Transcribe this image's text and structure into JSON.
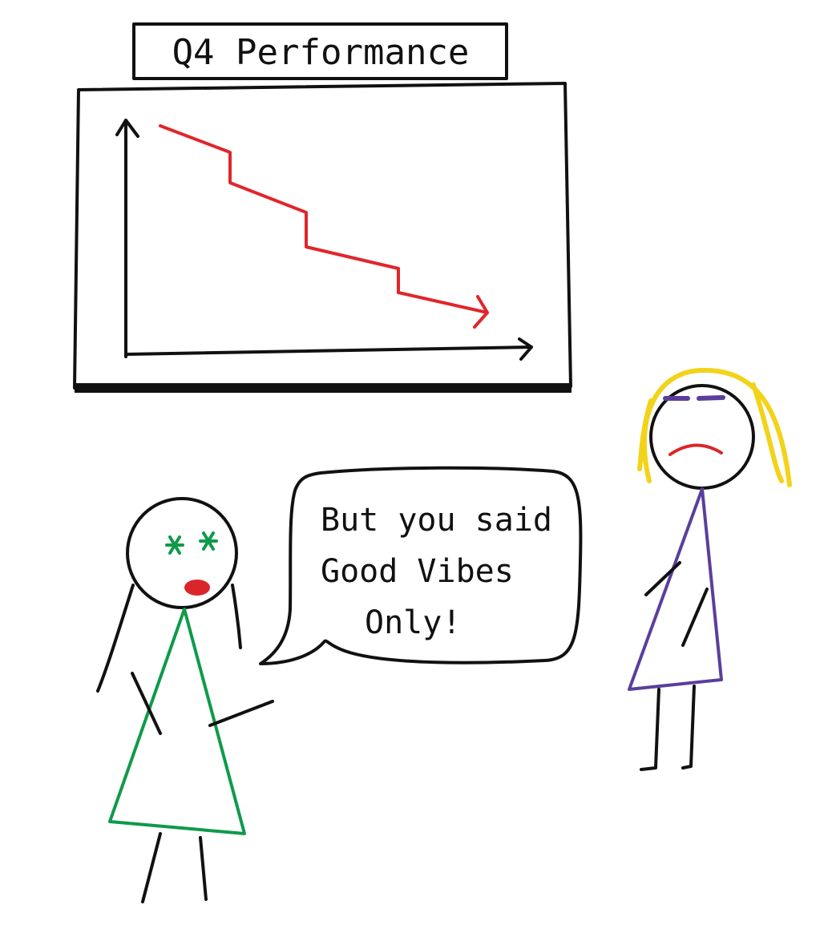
{
  "title_sign": {
    "text": "Q4 Performance"
  },
  "chart": {
    "trend": "declining",
    "line_color": "#e0262b"
  },
  "speech_bubble": {
    "lines": [
      "But you said",
      "Good Vibes",
      "Only!"
    ]
  },
  "characters": {
    "speaker": {
      "dress_color": "#0f9a4a",
      "eye_icon": "star-eyes",
      "mouth_color": "#d9262a"
    },
    "listener": {
      "dress_color": "#5b3e9c",
      "hair_color": "#f2d31a",
      "mouth_color": "#d9262a"
    }
  }
}
